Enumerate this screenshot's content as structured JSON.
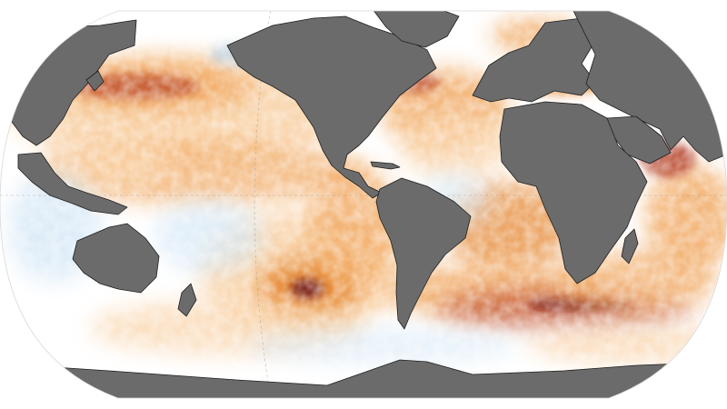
{
  "map": {
    "projection": "robinson",
    "subject": "sea-surface-temperature-anomaly",
    "colors": {
      "land": "#6b6b6b",
      "land_border": "#1e1e1e",
      "ocean_neutral": "#ffffff",
      "cool_light": "#d6e8f7",
      "cool_medium": "#a9cdee",
      "warm_light": "#f9d3a8",
      "warm_medium": "#f1a75f",
      "warm_strong": "#e4832a",
      "hot": "#b0361b",
      "hottest": "#6b0f0b",
      "graticule": "#9a9a9a"
    },
    "hotspots": [
      "north-pacific",
      "south-pacific-core",
      "northwest-atlantic",
      "south-atlantic-indian-band",
      "arabian-sea",
      "mediterranean"
    ]
  }
}
